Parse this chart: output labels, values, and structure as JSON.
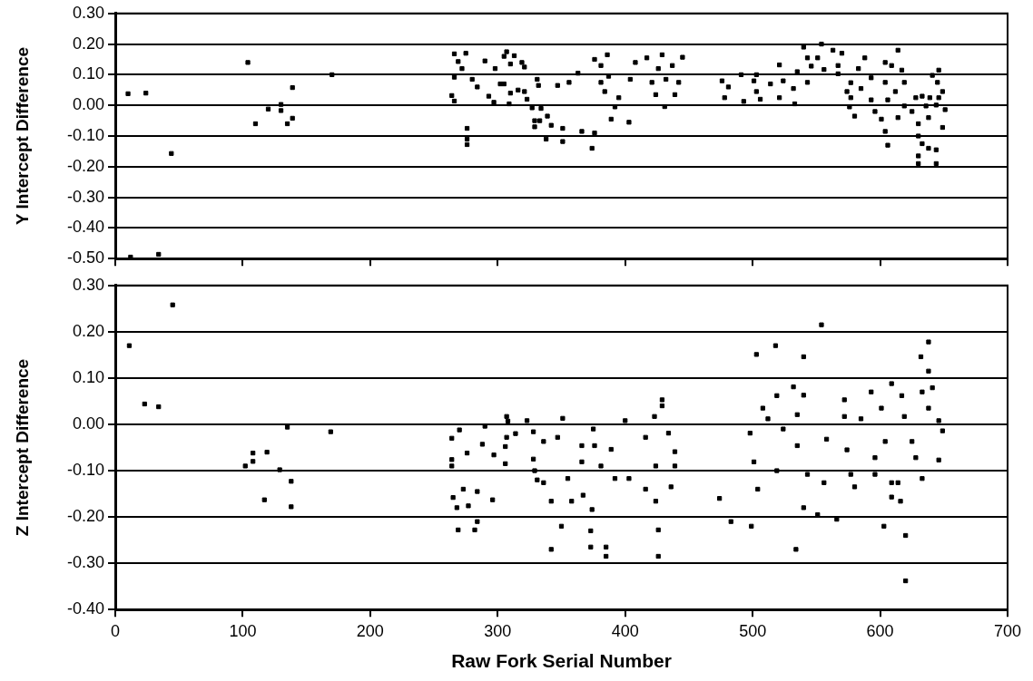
{
  "chart_data": [
    {
      "type": "scatter",
      "ylabel": "Y Intercept Difference",
      "xlim": [
        0,
        700
      ],
      "xticks": [
        0,
        100,
        200,
        300,
        400,
        500,
        600,
        700
      ],
      "ylim": [
        -0.5,
        0.3
      ],
      "yticks": [
        {
          "value": 0.3,
          "label": "0.30"
        },
        {
          "value": 0.2,
          "label": "0.20"
        },
        {
          "value": 0.1,
          "label": "0.10"
        },
        {
          "value": 0,
          "label": "0.00"
        },
        {
          "value": -0.1,
          "label": "-0.10"
        },
        {
          "value": -0.2,
          "label": "-0.20"
        },
        {
          "value": -0.3,
          "label": "-0.30"
        },
        {
          "value": -0.4,
          "label": "-0.40"
        },
        {
          "value": -0.5,
          "label": "-0.50"
        }
      ],
      "tick_labels": "y",
      "grid": "y",
      "legend": false,
      "marker": "square",
      "series": [
        {
          "color": "#000000",
          "x": [
            10,
            24,
            44,
            12,
            34,
            104,
            110,
            120,
            130,
            130,
            135,
            139,
            139,
            170,
            266,
            264,
            266,
            266,
            269,
            275,
            276,
            276,
            276,
            272,
            280,
            284,
            290,
            305,
            313,
            293,
            297,
            298,
            302,
            309,
            310,
            321,
            316,
            323,
            327,
            332,
            329,
            333,
            307,
            310,
            319,
            305,
            321,
            331,
            334,
            329,
            339,
            342,
            351,
            338,
            351,
            347,
            356,
            363,
            366,
            376,
            374,
            376,
            386,
            381,
            381,
            387,
            384,
            395,
            392,
            389,
            403,
            404,
            408,
            417,
            429,
            445,
            426,
            437,
            421,
            432,
            424,
            439,
            431,
            442,
            476,
            478,
            481,
            491,
            493,
            503,
            501,
            503,
            506,
            514,
            521,
            521,
            524,
            532,
            533,
            535,
            540,
            543,
            546,
            554,
            551,
            556,
            543,
            563,
            570,
            567,
            567,
            577,
            574,
            577,
            576,
            580,
            588,
            583,
            593,
            585,
            593,
            596,
            604,
            614,
            609,
            617,
            604,
            612,
            606,
            619,
            601,
            604,
            606,
            614,
            619,
            628,
            633,
            625,
            630,
            636,
            638,
            630,
            633,
            641,
            646,
            645,
            649,
            644,
            651,
            649,
            638,
            644,
            630,
            630,
            644,
            646,
            639
          ],
          "values": [
            0.038,
            0.04,
            -0.157,
            -0.495,
            -0.486,
            0.14,
            -0.06,
            -0.012,
            0.003,
            -0.017,
            -0.06,
            -0.042,
            0.058,
            0.1,
            0.168,
            0.032,
            0.014,
            0.092,
            0.143,
            0.17,
            -0.075,
            -0.11,
            -0.128,
            0.12,
            0.085,
            0.06,
            0.145,
            0.16,
            0.162,
            0.03,
            0.01,
            0.12,
            0.07,
            0.005,
            0.04,
            0.125,
            0.05,
            0.02,
            -0.008,
            0.065,
            -0.07,
            -0.05,
            0.175,
            0.135,
            0.14,
            0.07,
            0.045,
            0.085,
            -0.01,
            -0.05,
            -0.035,
            -0.065,
            -0.075,
            -0.11,
            -0.118,
            0.065,
            0.075,
            0.105,
            -0.085,
            -0.09,
            -0.14,
            0.15,
            0.165,
            0.13,
            0.075,
            0.095,
            0.045,
            0.025,
            -0.005,
            -0.045,
            -0.055,
            0.085,
            0.14,
            0.155,
            0.165,
            0.157,
            0.12,
            0.13,
            0.075,
            0.085,
            0.035,
            0.035,
            -0.004,
            0.075,
            0.08,
            0.025,
            0.06,
            0.1,
            0.013,
            0.1,
            0.08,
            0.045,
            0.02,
            0.07,
            0.132,
            0.025,
            0.08,
            0.055,
            0.005,
            0.11,
            0.19,
            0.155,
            0.128,
            0.2,
            0.155,
            0.117,
            0.075,
            0.18,
            0.17,
            0.13,
            0.103,
            0.074,
            0.045,
            0.025,
            -0.005,
            -0.035,
            0.155,
            0.12,
            0.09,
            0.055,
            0.018,
            -0.02,
            0.14,
            0.18,
            0.13,
            0.115,
            0.075,
            0.045,
            0.018,
            -0.002,
            -0.045,
            -0.085,
            -0.13,
            -0.04,
            0.075,
            0.025,
            0.03,
            -0.02,
            -0.06,
            -0.002,
            -0.04,
            -0.1,
            -0.125,
            0.098,
            0.115,
            0.075,
            0.045,
            0.001,
            -0.014,
            -0.072,
            -0.14,
            -0.145,
            -0.165,
            -0.19,
            -0.19,
            0.025,
            0.025
          ]
        }
      ]
    },
    {
      "type": "scatter",
      "xlabel": "Raw Fork Serial Number",
      "ylabel": "Z Intercept Difference",
      "xlim": [
        0,
        700
      ],
      "xticks": [
        0,
        100,
        200,
        300,
        400,
        500,
        600,
        700
      ],
      "ylim": [
        -0.4,
        0.3
      ],
      "yticks": [
        {
          "value": 0.3,
          "label": "0.30"
        },
        {
          "value": 0.2,
          "label": "0.20"
        },
        {
          "value": 0.1,
          "label": "0.10"
        },
        {
          "value": 0,
          "label": "0.00"
        },
        {
          "value": -0.1,
          "label": "-0.10"
        },
        {
          "value": -0.2,
          "label": "-0.20"
        },
        {
          "value": -0.3,
          "label": "-0.30"
        },
        {
          "value": -0.4,
          "label": "-0.40"
        }
      ],
      "grid": "y",
      "legend": false,
      "marker": "square",
      "series": [
        {
          "color": "#000000",
          "x": [
            11,
            23,
            34,
            45,
            102,
            108,
            108,
            119,
            117,
            129,
            135,
            138,
            138,
            169,
            264,
            264,
            264,
            265,
            268,
            270,
            276,
            273,
            284,
            290,
            288,
            297,
            296,
            308,
            306,
            306,
            314,
            328,
            328,
            331,
            277,
            284,
            269,
            282,
            342,
            350,
            373,
            373,
            385,
            385,
            426,
            426,
            499,
            483,
            534,
            603,
            620,
            620,
            551,
            566,
            307,
            307,
            323,
            336,
            347,
            329,
            336,
            342,
            351,
            355,
            358,
            366,
            366,
            375,
            376,
            381,
            389,
            392,
            367,
            374,
            403,
            400,
            416,
            416,
            424,
            423,
            429,
            429,
            434,
            439,
            439,
            424,
            436,
            474,
            498,
            501,
            503,
            504,
            508,
            512,
            518,
            519,
            524,
            519,
            532,
            540,
            540,
            535,
            535,
            554,
            543,
            540,
            556,
            558,
            572,
            572,
            574,
            577,
            585,
            580,
            593,
            596,
            596,
            601,
            604,
            609,
            609,
            609,
            617,
            619,
            625,
            628,
            632,
            638,
            638,
            633,
            641,
            638,
            646,
            649,
            646,
            633,
            614,
            616
          ],
          "values": [
            0.17,
            0.044,
            0.038,
            0.258,
            -0.09,
            -0.08,
            -0.062,
            -0.06,
            -0.163,
            -0.098,
            -0.006,
            -0.123,
            -0.178,
            -0.016,
            -0.03,
            -0.076,
            -0.09,
            -0.158,
            -0.18,
            -0.012,
            -0.062,
            -0.14,
            -0.145,
            -0.004,
            -0.043,
            -0.066,
            -0.163,
            0.007,
            -0.048,
            -0.085,
            -0.02,
            -0.016,
            -0.075,
            -0.12,
            -0.176,
            -0.21,
            -0.228,
            -0.228,
            -0.27,
            -0.22,
            -0.23,
            -0.265,
            -0.265,
            -0.285,
            -0.228,
            -0.285,
            -0.22,
            -0.21,
            -0.27,
            -0.22,
            -0.24,
            -0.338,
            -0.195,
            -0.205,
            0.017,
            -0.028,
            0.008,
            -0.037,
            -0.028,
            -0.1,
            -0.126,
            -0.166,
            0.013,
            -0.117,
            -0.166,
            -0.046,
            -0.081,
            -0.01,
            -0.046,
            -0.09,
            -0.054,
            -0.117,
            -0.153,
            -0.184,
            -0.117,
            0.008,
            -0.028,
            -0.14,
            -0.09,
            0.017,
            0.053,
            0.04,
            -0.019,
            -0.059,
            -0.09,
            -0.166,
            -0.135,
            -0.16,
            -0.019,
            -0.081,
            0.151,
            -0.14,
            0.035,
            0.012,
            0.17,
            0.062,
            -0.01,
            -0.1,
            0.081,
            0.146,
            0.063,
            0.021,
            -0.046,
            0.215,
            -0.108,
            -0.18,
            -0.126,
            -0.032,
            0.053,
            0.017,
            -0.055,
            -0.108,
            0.012,
            -0.135,
            0.07,
            -0.072,
            -0.108,
            0.035,
            -0.037,
            0.088,
            -0.126,
            -0.157,
            0.062,
            0.017,
            -0.037,
            -0.072,
            0.146,
            0.178,
            0.115,
            0.07,
            0.079,
            0.035,
            0.008,
            -0.014,
            -0.077,
            -0.117,
            -0.126,
            -0.166
          ]
        }
      ]
    }
  ]
}
